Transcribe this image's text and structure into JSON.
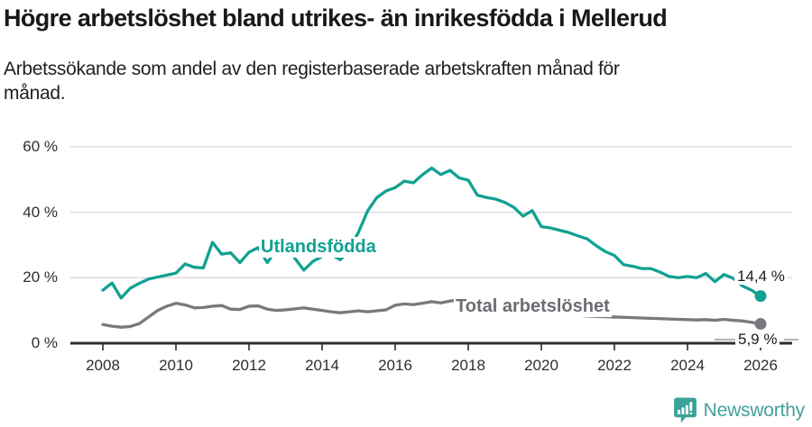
{
  "header": {
    "title": "Högre arbetslöshet bland utrikes- än inrikesfödda i Mellerud",
    "subtitle_line1": "Arbetssökande som andel av den registerbaserade arbetskraften månad för",
    "subtitle_line2": "månad."
  },
  "chart_data": {
    "type": "line",
    "title": "Högre arbetslöshet bland utrikes- än inrikesfödda i Mellerud",
    "subtitle": "Arbetssökande som andel av den registerbaserade arbetskraften månad för månad.",
    "x_start": 2008,
    "x_step_years": 0.25,
    "x_end": 2026,
    "ylim": [
      0,
      60
    ],
    "grid": true,
    "legend_position": "inline-labels",
    "y_grid_values": [
      0,
      20,
      40,
      60
    ],
    "y_tick_labels": [
      "0 %",
      "20 %",
      "40 %",
      "60 %"
    ],
    "x_ticks": [
      2008,
      2010,
      2012,
      2014,
      2016,
      2018,
      2020,
      2022,
      2024,
      2026
    ],
    "x_tick_labels": [
      "2008",
      "2010",
      "2012",
      "2014",
      "2016",
      "2018",
      "2020",
      "2022",
      "2024",
      "2026"
    ],
    "series": [
      {
        "name": "Utlandsfödda",
        "color": "#10a192",
        "end_label": "14,4 %",
        "end_value": 14.4,
        "values": [
          16.2,
          18.4,
          13.8,
          16.8,
          18.3,
          19.6,
          20.2,
          20.8,
          21.4,
          24.2,
          23.2,
          23.0,
          30.8,
          27.2,
          27.6,
          24.6,
          27.8,
          29.2,
          24.6,
          28.6,
          29.4,
          26.0,
          22.3,
          25.0,
          26.5,
          27.0,
          25.5,
          28.5,
          34.0,
          40.5,
          44.5,
          46.5,
          47.5,
          49.5,
          49.0,
          51.5,
          53.5,
          51.5,
          52.8,
          50.5,
          49.8,
          45.2,
          44.5,
          44.0,
          43.0,
          41.5,
          38.8,
          40.5,
          35.6,
          35.2,
          34.5,
          33.8,
          32.8,
          31.9,
          29.8,
          28.0,
          26.8,
          24.0,
          23.5,
          22.8,
          22.8,
          21.7,
          20.4,
          20.0,
          20.4,
          20.0,
          21.3,
          18.8,
          21.0,
          19.8,
          17.5,
          16.2,
          14.4
        ]
      },
      {
        "name": "Total arbetslöshet",
        "color": "#78787e",
        "end_label": "5,9 %",
        "end_value": 5.9,
        "values": [
          5.7,
          5.2,
          4.9,
          5.1,
          6.0,
          8.0,
          10.0,
          11.3,
          12.2,
          11.7,
          10.8,
          10.9,
          11.3,
          11.5,
          10.4,
          10.3,
          11.3,
          11.4,
          10.4,
          10.0,
          10.2,
          10.5,
          10.8,
          10.4,
          10.0,
          9.6,
          9.3,
          9.6,
          9.9,
          9.6,
          9.9,
          10.2,
          11.6,
          12.0,
          11.8,
          12.2,
          12.7,
          12.3,
          12.9,
          13.2,
          12.8,
          12.4,
          12.0,
          11.5,
          11.0,
          10.5,
          10.0,
          9.5,
          9.2,
          9.0,
          8.8,
          8.6,
          8.5,
          8.3,
          8.2,
          8.1,
          8.0,
          7.9,
          7.8,
          7.7,
          7.6,
          7.5,
          7.4,
          7.3,
          7.2,
          7.1,
          7.2,
          7.0,
          7.3,
          7.0,
          6.8,
          6.4,
          5.9
        ]
      }
    ]
  },
  "footer": {
    "brand": "Newsworthy",
    "logo_icon": "bar-chart-speech-bubble-icon",
    "brand_color": "#43a09a"
  },
  "colors": {
    "accent_teal": "#10a192",
    "line_gray": "#78787e",
    "label_gray": "#6c6c73",
    "grid": "#d9d9d9",
    "axis": "#2d2d2d",
    "text": "#191919"
  }
}
